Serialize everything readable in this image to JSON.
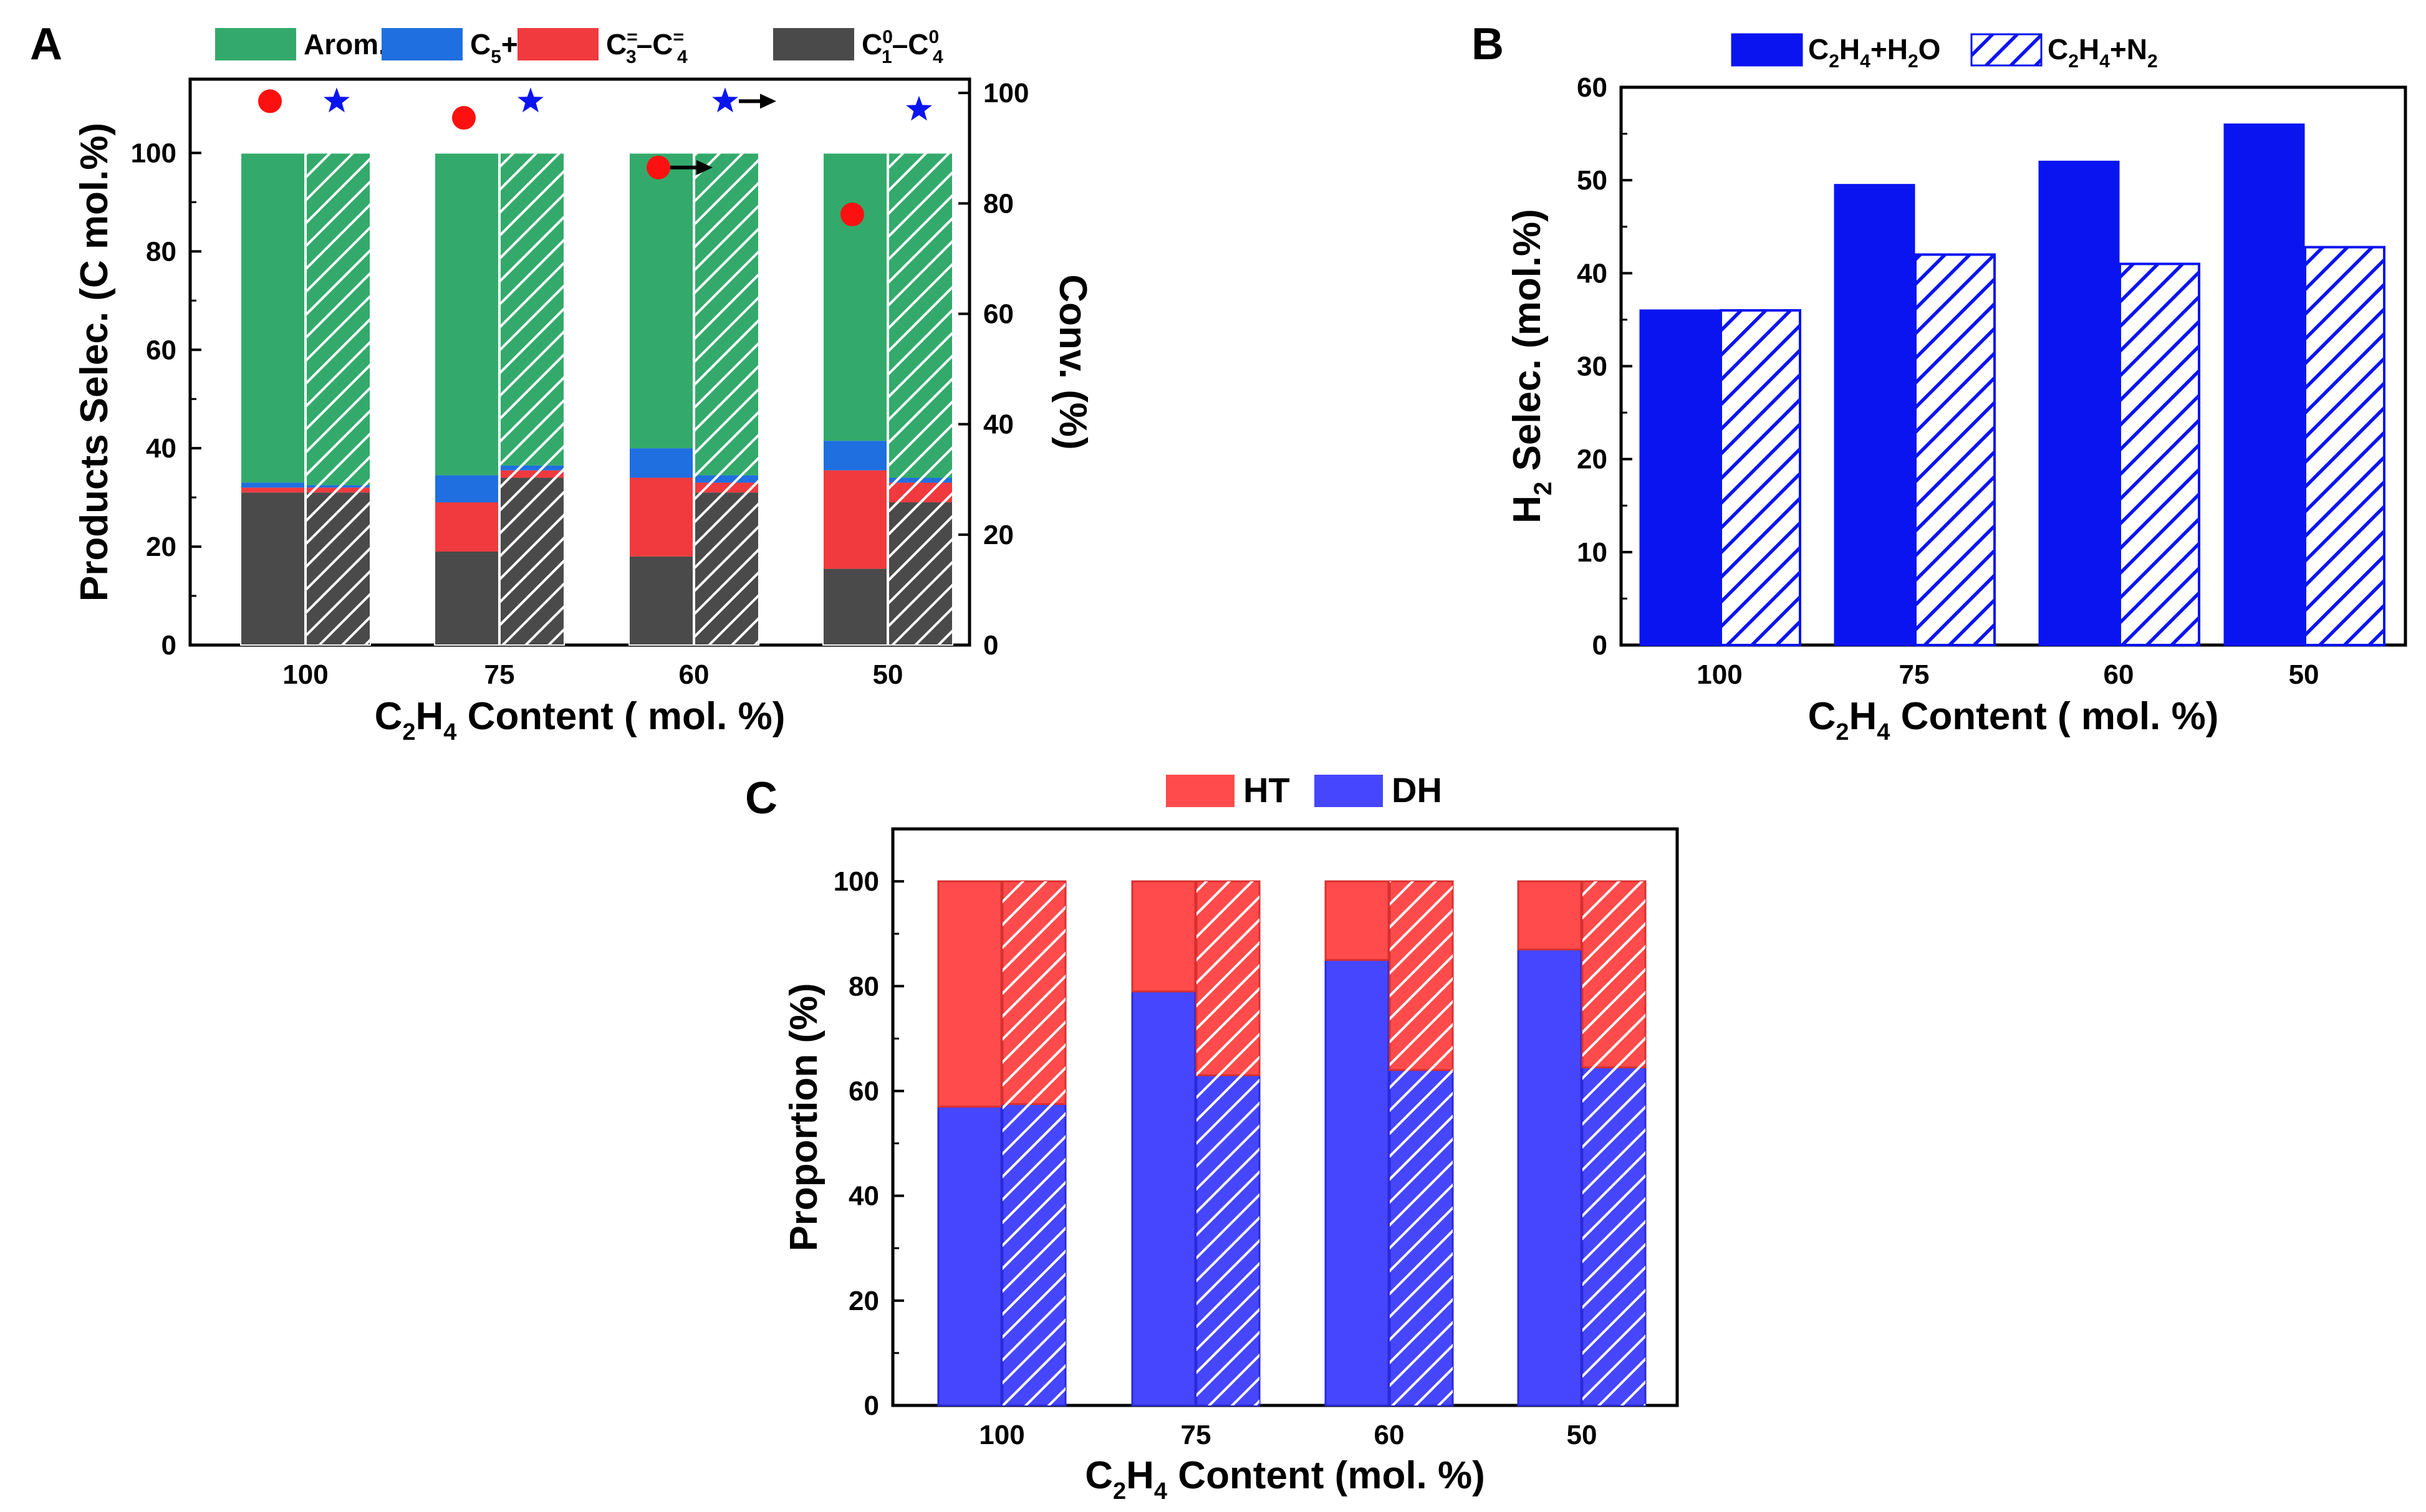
{
  "panels": [
    "A",
    "B",
    "C"
  ],
  "chart_data": [
    {
      "type": "bar",
      "stacked": true,
      "categories": [
        "100",
        "75",
        "60",
        "50"
      ],
      "xlabel": {
        "base": "C",
        "sub1": "2",
        "mid": "H",
        "sub2": "4",
        "rest": " Content ( mol. %)"
      },
      "ylabel": "Products Selec. (C mol.%)",
      "y2label": "Conv. (%)",
      "ylim": [
        0,
        115
      ],
      "y2lim": [
        0,
        102.5
      ],
      "yticks": [
        "0",
        "20",
        "40",
        "60",
        "80",
        "100"
      ],
      "y2ticks": [
        "0",
        "20",
        "40",
        "60",
        "80",
        "100"
      ],
      "legend": [
        {
          "text": "Arom.",
          "color": "#33aa6b"
        },
        {
          "text": "C",
          "sub": "5",
          "post": "+",
          "color": "#1f6fe0"
        },
        {
          "text": "C",
          "sub": "3",
          "sup": "=",
          "dash": "–C",
          "sub2": "4",
          "sup2": "=",
          "color": "#f03a3e"
        },
        {
          "text": "C",
          "sub": "1",
          "sup": "0",
          "dash": "–C",
          "sub2": "4",
          "sup2": "0",
          "color": "#4a4a4a"
        }
      ],
      "colors": {
        "arom": "#33aa6b",
        "c5": "#1f6fe0",
        "olef": "#f03a3e",
        "paraf": "#4a4a4a"
      },
      "solid": {
        "paraf": [
          31,
          19,
          18,
          15.5
        ],
        "olef": [
          1,
          10,
          16,
          20
        ],
        "c5": [
          1,
          5.5,
          6,
          6
        ],
        "arom": [
          67,
          65.5,
          60,
          58.5
        ]
      },
      "hatched": {
        "paraf": [
          31,
          34,
          31,
          29
        ],
        "olef": [
          1,
          1.5,
          2,
          4
        ],
        "c5": [
          0.5,
          1,
          1.5,
          1
        ],
        "arom": [
          67.5,
          63.5,
          65.5,
          66
        ]
      },
      "conv_circles": [
        98.5,
        95.5,
        86.5,
        78
      ],
      "conv_stars": [
        98.5,
        98.5,
        98.5,
        97
      ]
    },
    {
      "type": "bar",
      "categories": [
        "100",
        "75",
        "60",
        "50"
      ],
      "xlabel": {
        "base": "C",
        "sub1": "2",
        "mid": "H",
        "sub2": "4",
        "rest": " Content ( mol. %)"
      },
      "ylabel": {
        "base": "H",
        "sub": "2",
        "rest": " Selec. (mol.%)"
      },
      "ylim": [
        0,
        60
      ],
      "yticks": [
        "0",
        "10",
        "20",
        "30",
        "40",
        "50",
        "60"
      ],
      "color": "#0a14f0",
      "legend": [
        {
          "a": "C",
          "s1": "2",
          "b": "H",
          "s2": "4",
          "c": "+H",
          "s3": "2",
          "d": "O"
        },
        {
          "a": "C",
          "s1": "2",
          "b": "H",
          "s2": "4",
          "c": "+N",
          "s3": "2",
          "d": ""
        }
      ],
      "series": [
        {
          "values": [
            36,
            49.5,
            52,
            56
          ]
        },
        {
          "values": [
            36,
            42,
            41,
            42.8
          ]
        }
      ]
    },
    {
      "type": "bar",
      "stacked": true,
      "categories": [
        "100",
        "75",
        "60",
        "50"
      ],
      "xlabel": {
        "base": "C",
        "sub1": "2",
        "mid": "H",
        "sub2": "4",
        "rest": " Content (mol. %)"
      },
      "ylabel": "Proportion (%)",
      "ylim": [
        0,
        110
      ],
      "yticks": [
        "0",
        "20",
        "40",
        "60",
        "80",
        "100"
      ],
      "legend": [
        {
          "text": "HT",
          "color": "#ff4b4b"
        },
        {
          "text": "DH",
          "color": "#4646ff"
        }
      ],
      "colors": {
        "ht": "#ff4b4b",
        "dh": "#4646ff"
      },
      "solid_dh": [
        57,
        79,
        85,
        87
      ],
      "hatched_dh": [
        57.5,
        63,
        64,
        64.5
      ]
    }
  ]
}
